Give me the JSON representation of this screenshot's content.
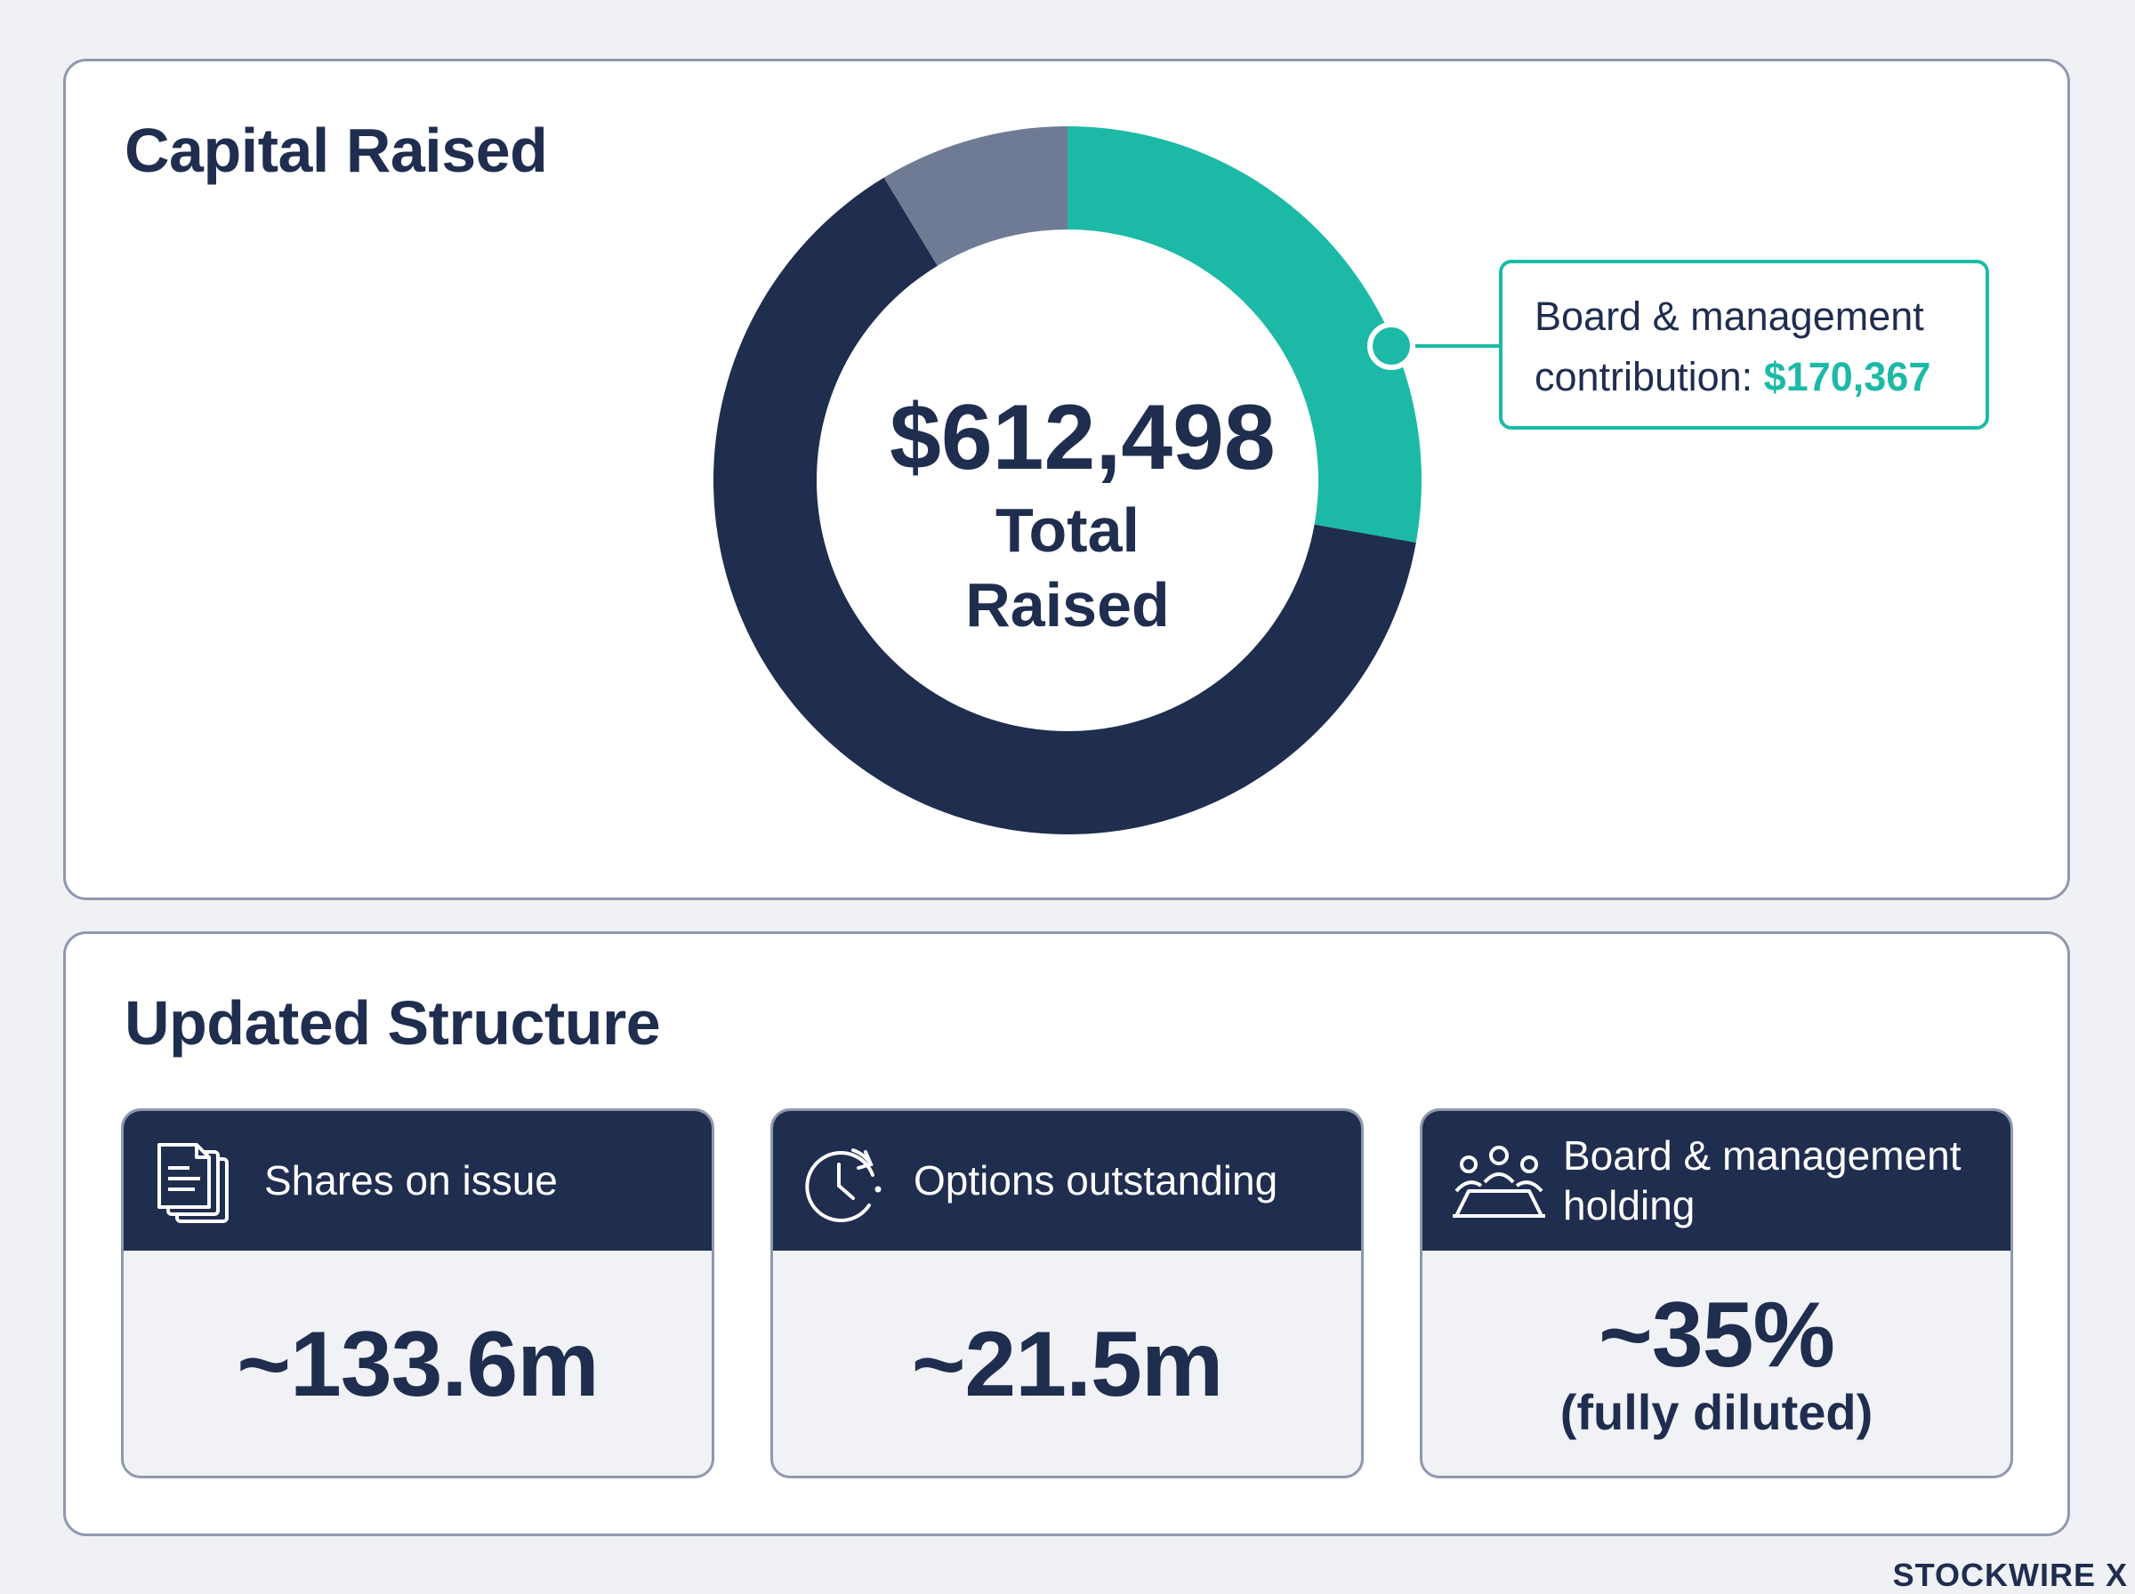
{
  "capital": {
    "title": "Capital Raised",
    "total_amount": "$612,498",
    "total_caption": "Total Raised",
    "callout_line1": "Board & management",
    "callout_line2_prefix": "contribution: ",
    "callout_value": "$170,367"
  },
  "chart_data": {
    "type": "pie",
    "title": "Capital Raised",
    "total": 612498,
    "slices": [
      {
        "label": "Board & management contribution",
        "value": 170367,
        "color": "#1cbaa6"
      },
      {
        "label": "",
        "value": 389000,
        "color": "#1f2d4f"
      },
      {
        "label": "",
        "value": 53131,
        "color": "#6f7b95"
      }
    ]
  },
  "structure": {
    "title": "Updated Structure",
    "cards": [
      {
        "label": "Shares on issue",
        "value": "~133.6m",
        "sub": "",
        "icon": "documents-icon"
      },
      {
        "label": "Options outstanding",
        "value": "~21.5m",
        "sub": "",
        "icon": "clock-icon"
      },
      {
        "label": "Board & management holding",
        "value": "~35%",
        "sub": "(fully diluted)",
        "icon": "meeting-icon"
      }
    ]
  },
  "brand": {
    "name": "STOCKWIRE X"
  },
  "colors": {
    "navy": "#1f2d4f",
    "teal": "#1cbaa6",
    "slate": "#6f7b95"
  }
}
